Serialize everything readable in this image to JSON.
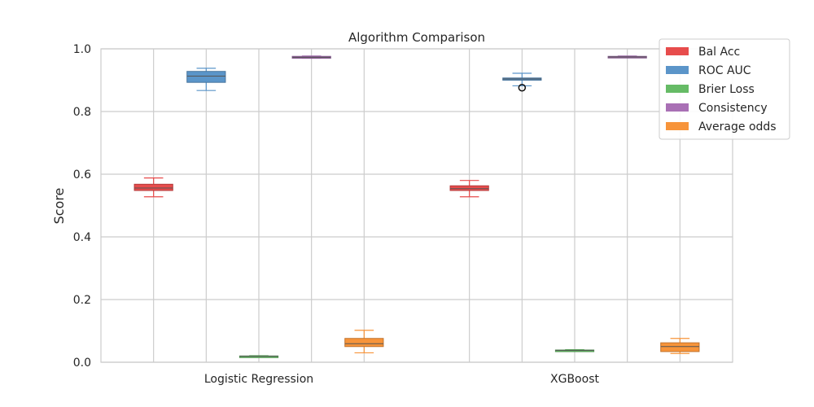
{
  "chart_data": {
    "type": "boxplot",
    "title": "Algorithm Comparison",
    "xlabel": "",
    "ylabel": "Score",
    "ylim": [
      0.0,
      1.0
    ],
    "yticks": [
      "0.0",
      "0.2",
      "0.4",
      "0.6",
      "0.8",
      "1.0"
    ],
    "categories": [
      "Logistic Regression",
      "XGBoost"
    ],
    "grid": true,
    "legend_position": "top-right",
    "series": [
      {
        "name": "Bal Acc",
        "color": "#e74c4c",
        "boxes": [
          {
            "whislo": 0.528,
            "q1": 0.548,
            "med": 0.556,
            "q3": 0.568,
            "whishi": 0.588,
            "fliers": []
          },
          {
            "whislo": 0.528,
            "q1": 0.548,
            "med": 0.554,
            "q3": 0.563,
            "whishi": 0.58,
            "fliers": []
          }
        ]
      },
      {
        "name": "ROC AUC",
        "color": "#5b95c9",
        "boxes": [
          {
            "whislo": 0.867,
            "q1": 0.893,
            "med": 0.913,
            "q3": 0.928,
            "whishi": 0.938,
            "fliers": []
          },
          {
            "whislo": 0.882,
            "q1": 0.9,
            "med": 0.904,
            "q3": 0.907,
            "whishi": 0.922,
            "fliers": [
              0.876
            ]
          }
        ]
      },
      {
        "name": "Brier Loss",
        "color": "#66bb66",
        "boxes": [
          {
            "whislo": 0.017,
            "q1": 0.018,
            "med": 0.019,
            "q3": 0.02,
            "whishi": 0.021,
            "fliers": []
          },
          {
            "whislo": 0.036,
            "q1": 0.037,
            "med": 0.038,
            "q3": 0.039,
            "whishi": 0.04,
            "fliers": []
          }
        ]
      },
      {
        "name": "Consistency",
        "color": "#a970b5",
        "boxes": [
          {
            "whislo": 0.97,
            "q1": 0.97,
            "med": 0.973,
            "q3": 0.976,
            "whishi": 0.977,
            "fliers": []
          },
          {
            "whislo": 0.972,
            "q1": 0.972,
            "med": 0.974,
            "q3": 0.976,
            "whishi": 0.977,
            "fliers": []
          }
        ]
      },
      {
        "name": "Average odds",
        "color": "#f7943a",
        "boxes": [
          {
            "whislo": 0.03,
            "q1": 0.05,
            "med": 0.059,
            "q3": 0.076,
            "whishi": 0.102,
            "fliers": []
          },
          {
            "whislo": 0.028,
            "q1": 0.034,
            "med": 0.05,
            "q3": 0.062,
            "whishi": 0.076,
            "fliers": []
          }
        ]
      }
    ]
  }
}
